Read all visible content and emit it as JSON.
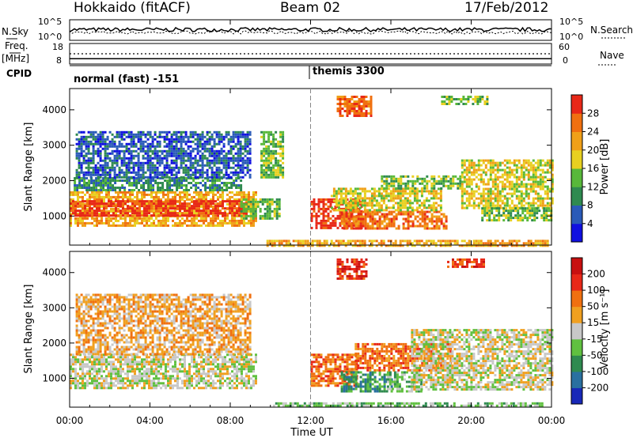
{
  "header": {
    "station": "Hokkaido (fitACF)",
    "beam": "Beam 02",
    "date": "17/Feb/2012"
  },
  "chart_data": [
    {
      "type": "line",
      "panel": "noise",
      "left_label": "N.Sky",
      "right_label": "N.Search",
      "left_ticks": [
        "10^5",
        "10^0"
      ],
      "right_ticks": [
        "10^5",
        "10^0"
      ]
    },
    {
      "type": "line",
      "panel": "frequency",
      "left_label": "Freq.",
      "left_unit": "[MHz]",
      "left_ticks": [
        "18",
        "8"
      ],
      "right_label": "Nave",
      "right_ticks": [
        "60",
        "0"
      ],
      "freq_value": 10.6,
      "nave_value": 30
    },
    {
      "type": "table",
      "panel": "cpid",
      "label": "CPID",
      "segments": [
        {
          "start": "00:00",
          "end": "12:00",
          "text": "normal (fast) -151"
        },
        {
          "start": "12:00",
          "end": "24:00",
          "text": "themis 3300"
        }
      ]
    },
    {
      "type": "heatmap",
      "panel": "power",
      "ylabel": "Slant Range [km]",
      "yticks": [
        1000,
        2000,
        3000,
        4000
      ],
      "ylim": [
        180,
        4600
      ],
      "colorbar_label": "Power [dB]",
      "colorbar_ticks": [
        "4",
        "8",
        "12",
        "16",
        "20",
        "24",
        "28"
      ],
      "colorbar_colors": [
        "#1010e0",
        "#2a5ab8",
        "#2f8a50",
        "#58b83a",
        "#e8d020",
        "#f0a018",
        "#f07010",
        "#e82818"
      ],
      "regions": [
        {
          "t0": 0.0,
          "t1": 9.3,
          "r0": 700,
          "r1": 1700,
          "level": 5
        },
        {
          "t0": 0.0,
          "t1": 8.8,
          "r0": 1000,
          "r1": 1450,
          "level": 7
        },
        {
          "t0": 0.2,
          "t1": 8.5,
          "r0": 1700,
          "r1": 2100,
          "level": 2
        },
        {
          "t0": 0.3,
          "t1": 9.0,
          "r0": 2100,
          "r1": 3400,
          "level": 1
        },
        {
          "t0": 8.5,
          "t1": 10.5,
          "r0": 900,
          "r1": 1500,
          "level": 3
        },
        {
          "t0": 12.0,
          "t1": 14.6,
          "r0": 650,
          "r1": 1500,
          "level": 7
        },
        {
          "t0": 13.5,
          "t1": 18.8,
          "r0": 650,
          "r1": 1150,
          "level": 6
        },
        {
          "t0": 13.0,
          "t1": 18.5,
          "r0": 1150,
          "r1": 1800,
          "level": 4
        },
        {
          "t0": 15.5,
          "t1": 19.5,
          "r0": 1800,
          "r1": 2150,
          "level": 3
        },
        {
          "t0": 19.5,
          "t1": 24.0,
          "r0": 1200,
          "r1": 2600,
          "level": 4
        },
        {
          "t0": 20.5,
          "t1": 24.0,
          "r0": 850,
          "r1": 1250,
          "level": 3
        },
        {
          "t0": 13.3,
          "t1": 15.0,
          "r0": 3800,
          "r1": 4400,
          "level": 6
        },
        {
          "t0": 18.5,
          "t1": 20.8,
          "r0": 4150,
          "r1": 4400,
          "level": 3
        },
        {
          "t0": 9.5,
          "t1": 10.6,
          "r0": 2100,
          "r1": 3400,
          "level": 3
        },
        {
          "t0": 9.8,
          "t1": 23.8,
          "r0": 190,
          "r1": 330,
          "level": 5
        }
      ]
    },
    {
      "type": "heatmap",
      "panel": "velocity",
      "ylabel": "Slant Range [km]",
      "yticks": [
        1000,
        2000,
        3000,
        4000
      ],
      "ylim": [
        180,
        4600
      ],
      "colorbar_label": "Velocity [m s⁻¹]",
      "colorbar_ticks": [
        "200",
        "100",
        "50",
        "15",
        "-15",
        "-50",
        "-100",
        "-200"
      ],
      "colorbar_colors": [
        "#1828b8",
        "#2a70a0",
        "#2f8a50",
        "#60c040",
        "#c8c8c8",
        "#f0a020",
        "#f07010",
        "#e82818",
        "#c81010"
      ],
      "regions": [
        {
          "t0": 0.0,
          "t1": 9.3,
          "r0": 700,
          "r1": 1700,
          "level": 4
        },
        {
          "t0": 0.3,
          "t1": 9.0,
          "r0": 1700,
          "r1": 3400,
          "level": 5
        },
        {
          "t0": 12.0,
          "t1": 14.3,
          "r0": 800,
          "r1": 1700,
          "level": 6
        },
        {
          "t0": 13.5,
          "t1": 16.0,
          "r0": 600,
          "r1": 1200,
          "level": 2
        },
        {
          "t0": 15.8,
          "t1": 17.5,
          "r0": 600,
          "r1": 1200,
          "level": 3
        },
        {
          "t0": 14.2,
          "t1": 19.0,
          "r0": 1200,
          "r1": 2000,
          "level": 6
        },
        {
          "t0": 17.0,
          "t1": 24.0,
          "r0": 650,
          "r1": 2400,
          "level": 4
        },
        {
          "t0": 13.3,
          "t1": 14.8,
          "r0": 3800,
          "r1": 4400,
          "level": 7
        },
        {
          "t0": 18.8,
          "t1": 20.6,
          "r0": 4150,
          "r1": 4400,
          "level": 7
        },
        {
          "t0": 10.0,
          "t1": 23.5,
          "r0": 190,
          "r1": 320,
          "level": 3
        }
      ]
    }
  ],
  "time_axis": {
    "label": "Time UT",
    "ticks": [
      "00:00",
      "04:00",
      "08:00",
      "12:00",
      "16:00",
      "20:00",
      "00:00"
    ],
    "range_hours": [
      0,
      24
    ],
    "marker_hour": 12
  }
}
